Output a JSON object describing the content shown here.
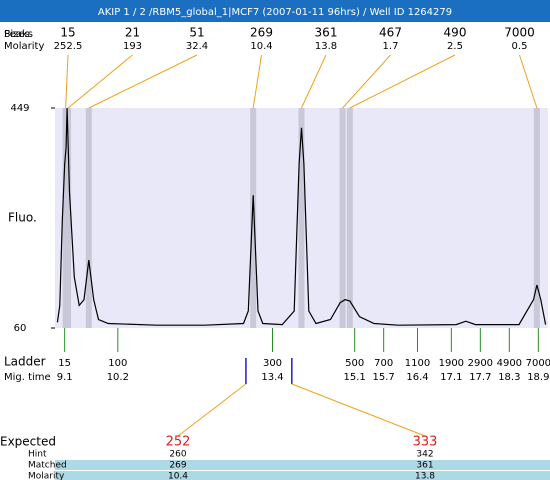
{
  "header": {
    "title": "AKIP 1 / 2 /RBM5_global_1|MCF7 (2007-01-11 96hrs) / Well ID 1264279"
  },
  "chart_data": {
    "type": "electropherogram",
    "y_label": "Fluo.",
    "ylim": [
      60,
      449
    ],
    "yticks": [
      60,
      449
    ],
    "xlim": [
      8.9,
      19.1
    ],
    "peaks": {
      "row_labels": [
        "Peaks",
        "Sizes",
        "Molarity"
      ],
      "sizes": [
        15,
        21,
        51,
        269,
        361,
        467,
        490,
        7000
      ],
      "molarities": [
        252.5,
        193,
        32.4,
        10.4,
        13.8,
        1.7,
        2.5,
        0.5
      ],
      "times": [
        9.12,
        9.17,
        9.6,
        13.0,
        14.0,
        14.85,
        15.0,
        18.87
      ],
      "line_color": "#f0a020",
      "band_color": "#c8c8d8"
    },
    "trace": {
      "color": "#000000",
      "x": [
        8.95,
        9.0,
        9.05,
        9.1,
        9.13,
        9.15,
        9.2,
        9.3,
        9.4,
        9.5,
        9.6,
        9.7,
        9.8,
        10.0,
        11,
        12,
        12.8,
        12.9,
        13.0,
        13.1,
        13.2,
        13.6,
        13.85,
        13.95,
        14.0,
        14.05,
        14.15,
        14.3,
        14.6,
        14.8,
        14.9,
        15.0,
        15.2,
        15.5,
        16,
        17.2,
        17.4,
        17.6,
        18.5,
        18.8,
        18.87,
        18.95,
        19.05
      ],
      "y": [
        70,
        100,
        250,
        350,
        380,
        449,
        300,
        150,
        100,
        110,
        180,
        110,
        75,
        68,
        65,
        65,
        68,
        90,
        295,
        90,
        68,
        66,
        90,
        350,
        414,
        350,
        90,
        68,
        75,
        105,
        110,
        108,
        80,
        68,
        65,
        66,
        72,
        66,
        66,
        110,
        136,
        110,
        66
      ]
    },
    "ladder": {
      "label": "Ladder",
      "time_label": "Mig. time",
      "color": "#2a8a2a",
      "sizes": [
        15,
        100,
        300,
        500,
        700,
        1100,
        1900,
        2900,
        4900,
        7000
      ],
      "times": [
        9.1,
        10.2,
        13.4,
        15.1,
        15.7,
        16.4,
        17.1,
        17.7,
        18.3,
        18.9
      ]
    },
    "expected": {
      "row_labels": [
        "Expected",
        "Hint",
        "Matched",
        "Molarity"
      ],
      "expected": [
        252,
        333
      ],
      "times": [
        12.85,
        13.8
      ],
      "hint": [
        260,
        342
      ],
      "matched": [
        269,
        361
      ],
      "molarity": [
        10.4,
        13.8
      ],
      "marker_color": "#2020c0",
      "expected_color": "#e02020",
      "row_color": "#add8e6"
    }
  }
}
